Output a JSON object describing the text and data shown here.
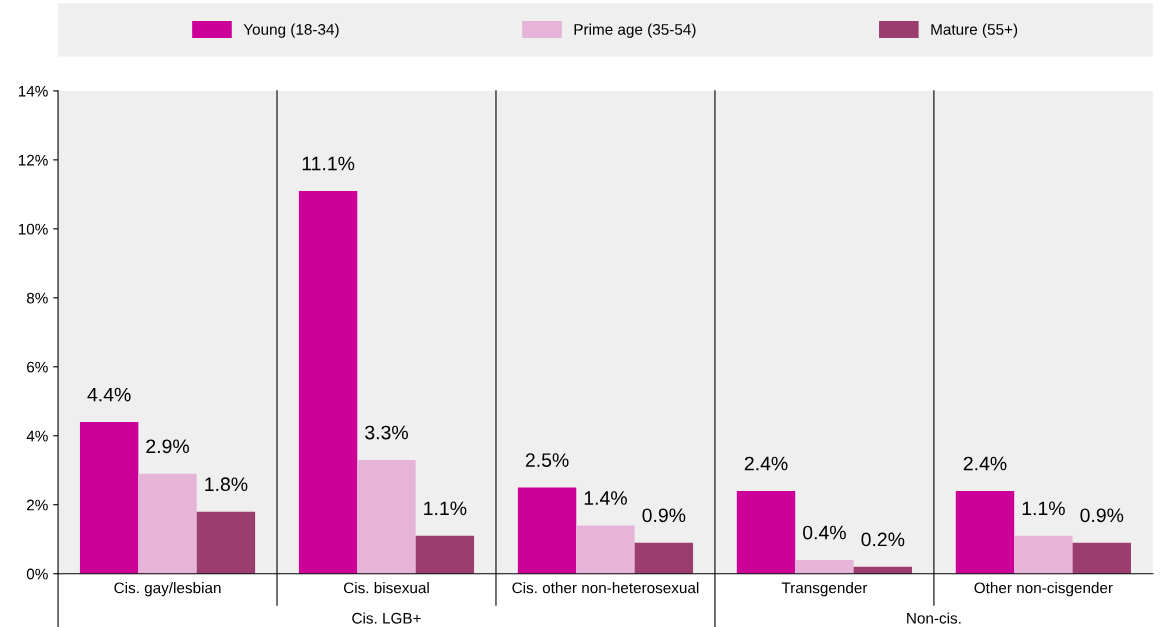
{
  "chart_data": {
    "type": "bar",
    "categories": [
      "Cis. gay/lesbian",
      "Cis. bisexual",
      "Cis. other non-heterosexual",
      "Transgender",
      "Other non-cisgender"
    ],
    "series": [
      {
        "name": "Young (18-34)",
        "color": "#cc0099",
        "values": [
          4.4,
          11.1,
          2.5,
          2.4,
          2.4
        ],
        "value_labels": [
          "4.4%",
          "11.1%",
          "2.5%",
          "2.4%",
          "2.4%"
        ]
      },
      {
        "name": "Prime age (35-54)",
        "color": "#e6b3d9",
        "values": [
          2.9,
          3.3,
          1.4,
          0.4,
          1.1
        ],
        "value_labels": [
          "2.9%",
          "3.3%",
          "1.4%",
          "0.4%",
          "1.1%"
        ]
      },
      {
        "name": "Mature (55+)",
        "color": "#9b3d6e",
        "values": [
          1.8,
          1.1,
          0.9,
          0.2,
          0.9
        ],
        "value_labels": [
          "1.8%",
          "1.1%",
          "0.9%",
          "0.2%",
          "0.9%"
        ]
      }
    ],
    "ylim": [
      0,
      14
    ],
    "yticks": [
      {
        "value": 0,
        "label": "0%"
      },
      {
        "value": 2,
        "label": "2%"
      },
      {
        "value": 4,
        "label": "4%"
      },
      {
        "value": 6,
        "label": "6%"
      },
      {
        "value": 8,
        "label": "8%"
      },
      {
        "value": 10,
        "label": "10%"
      },
      {
        "value": 12,
        "label": "12%"
      },
      {
        "value": 14,
        "label": "14%"
      }
    ],
    "annotations": [
      "Cis. LGB+",
      "Non-cis."
    ],
    "grid": false,
    "legend": "top"
  }
}
